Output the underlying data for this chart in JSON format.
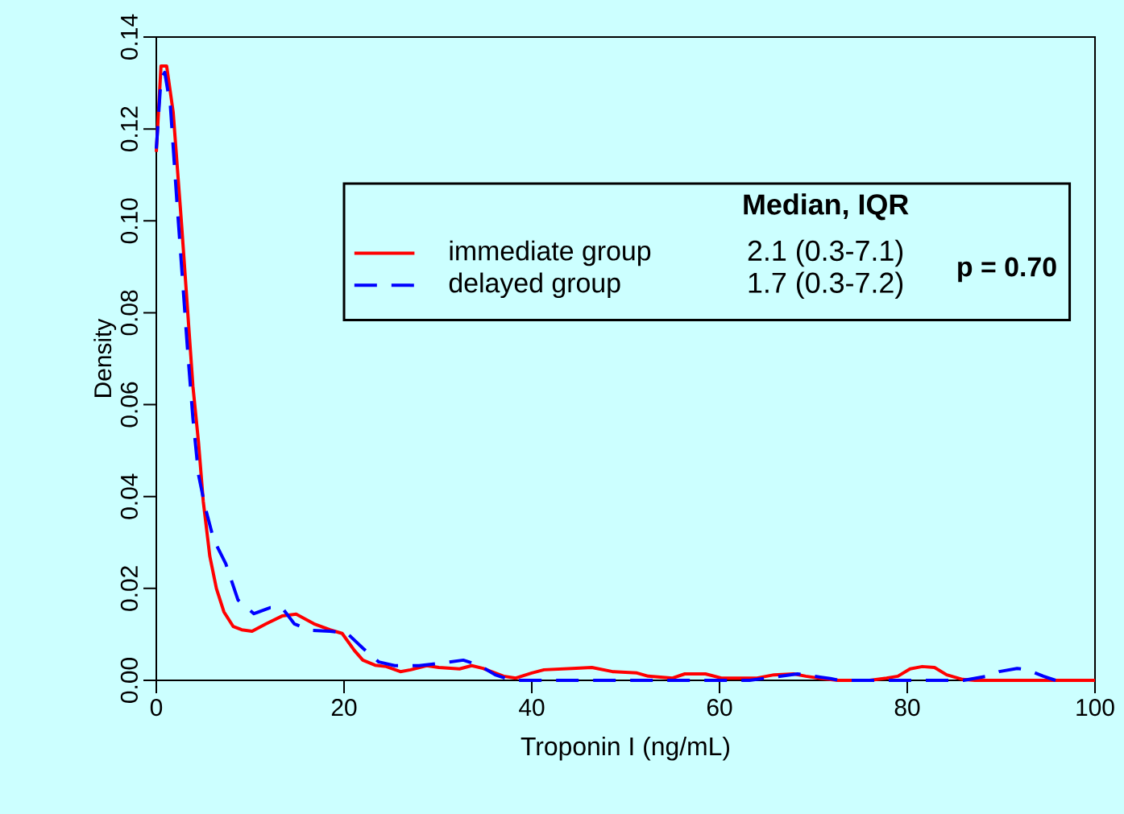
{
  "chart_data": {
    "type": "line",
    "xlabel": "Troponin I (ng/mL)",
    "ylabel": "Density",
    "xlim": [
      0,
      100
    ],
    "ylim": [
      0,
      0.14
    ],
    "xticks": [
      0,
      20,
      40,
      60,
      80,
      100
    ],
    "yticks": [
      {
        "value": 0,
        "label": "0.00"
      },
      0.02,
      0.04,
      0.06,
      0.08,
      {
        "value": 0.1,
        "label": "0.10"
      },
      0.12,
      0.14
    ],
    "grid": false,
    "legend": "top left",
    "marker": "none",
    "annotations": [
      "Median, IQR",
      "2.1 (0.3-7.1)",
      "1.7 (0.3-7.2)",
      "p = 0.70"
    ],
    "series": [
      {
        "name": "immediate group",
        "color": "#ff0000",
        "line_style": "solid",
        "x": [
          0,
          0.5,
          1.1,
          1.8,
          2.7,
          3.3,
          3.9,
          4.5,
          5.0,
          5.7,
          6.4,
          7.2,
          8.2,
          9.1,
          10.2,
          11.7,
          13.4,
          14.9,
          16.8,
          18.5,
          19.8,
          21.1,
          22,
          23.3,
          24.5,
          26,
          27.1,
          28.8,
          30.1,
          32.3,
          33.6,
          34.8,
          37,
          38.3,
          40,
          41.3,
          44.3,
          46.4,
          48.6,
          51.2,
          52.4,
          55,
          56.3,
          58.5,
          60.2,
          64,
          65.8,
          67.9,
          69.2,
          70.9,
          72.6,
          76,
          77.8,
          79,
          80.3,
          81.6,
          82.9,
          84.2,
          85.9,
          87.2,
          100
        ],
        "values": [
          0.115,
          0.1337,
          0.1337,
          0.1236,
          0.099,
          0.0815,
          0.064,
          0.0517,
          0.039,
          0.027,
          0.02,
          0.0149,
          0.0117,
          0.011,
          0.0107,
          0.0123,
          0.014,
          0.0144,
          0.0123,
          0.011,
          0.0102,
          0.0065,
          0.0044,
          0.0033,
          0.003,
          0.0019,
          0.0023,
          0.0032,
          0.0028,
          0.0025,
          0.0032,
          0.0026,
          0.0009,
          0.0005,
          0.0016,
          0.0023,
          0.0026,
          0.0028,
          0.0019,
          0.0016,
          0.0009,
          0.0005,
          0.0014,
          0.0014,
          0.0005,
          0.0005,
          0.0012,
          0.0014,
          0.0009,
          0.0004,
          0,
          0,
          0.0005,
          0.0009,
          0.0025,
          0.003,
          0.0028,
          0.0012,
          0.0002,
          0,
          0
        ]
      },
      {
        "name": "delayed group",
        "color": "#0000ff",
        "line_style": "dashed",
        "x": [
          0,
          0.5,
          0.9,
          1.5,
          2.2,
          2.8,
          3.3,
          3.9,
          4.5,
          5.2,
          6.1,
          7.4,
          8.7,
          10.4,
          12.1,
          13.4,
          14.7,
          16.4,
          18.5,
          20.3,
          22,
          23.7,
          25.4,
          28,
          30.1,
          32.7,
          34.4,
          36.1,
          37.9,
          40,
          63.2,
          68.3,
          71.8,
          72.7,
          86,
          88.5,
          89.8,
          91.7,
          92.8,
          94.5,
          95.8
        ],
        "values": [
          0.1157,
          0.131,
          0.1323,
          0.125,
          0.104,
          0.087,
          0.0727,
          0.057,
          0.0447,
          0.0377,
          0.0307,
          0.0254,
          0.0175,
          0.0145,
          0.0158,
          0.0158,
          0.0123,
          0.0109,
          0.0107,
          0.0103,
          0.007,
          0.004,
          0.0032,
          0.0032,
          0.0037,
          0.0044,
          0.0033,
          0.0012,
          0,
          0,
          0,
          0.0014,
          0.0004,
          0,
          0,
          0.0009,
          0.0019,
          0.0026,
          0.0023,
          0.0009,
          0
        ]
      }
    ]
  }
}
